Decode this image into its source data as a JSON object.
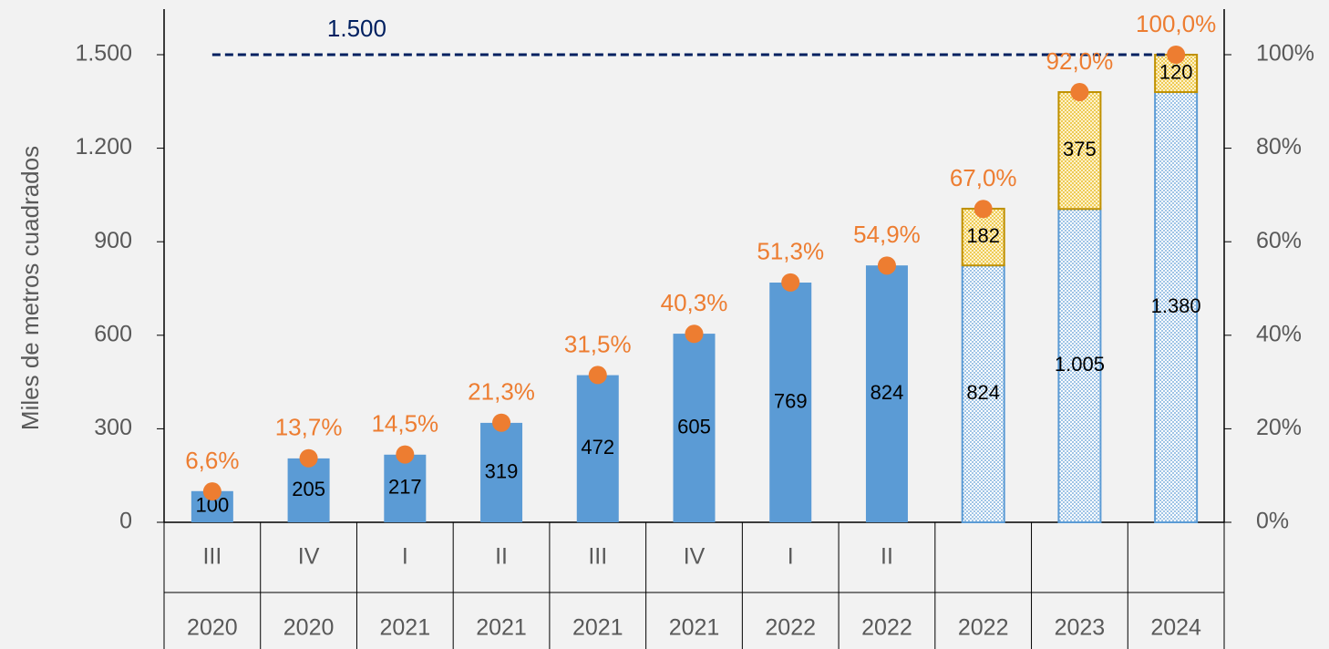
{
  "chart_data": {
    "type": "combo",
    "y_label": "Miles de metros cuadrados",
    "categories": [
      "III",
      "IV",
      "I",
      "II",
      "III",
      "IV",
      "I",
      "II",
      null,
      null,
      null
    ],
    "years": [
      "2020",
      "2020",
      "2021",
      "2021",
      "2021",
      "2021",
      "2022",
      "2022",
      "2022",
      "2023",
      "2024"
    ],
    "series": [
      {
        "kind": "bar",
        "color": "#5b9bd5",
        "styles": [
          "solid",
          "solid",
          "solid",
          "solid",
          "solid",
          "solid",
          "solid",
          "solid",
          "dotted",
          "dotted",
          "dotted"
        ],
        "values": [
          100,
          205,
          217,
          319,
          472,
          605,
          769,
          824,
          824,
          1005,
          1380
        ],
        "value_labels": [
          "100",
          "205",
          "217",
          "319",
          "472",
          "605",
          "769",
          "824",
          "824",
          "1.005",
          "1.380"
        ]
      },
      {
        "kind": "bar",
        "stacked": true,
        "color": "#ffd966",
        "edge": "#bf9000",
        "values": [
          null,
          null,
          null,
          null,
          null,
          null,
          null,
          null,
          182,
          375,
          120
        ]
      },
      {
        "kind": "point",
        "axis": "y2",
        "color": "#ed7d31",
        "values": [
          6.6,
          13.7,
          14.5,
          21.3,
          31.5,
          40.3,
          51.3,
          54.9,
          67.0,
          92.0,
          100.0
        ],
        "value_labels": [
          "6,6%",
          "13,7%",
          "14,5%",
          "21,3%",
          "31,5%",
          "40,3%",
          "51,3%",
          "54,9%",
          "67,0%",
          "92,0%",
          "100,0%"
        ]
      }
    ],
    "reference_line": {
      "value": 1500,
      "label": "1.500",
      "color": "#002060"
    },
    "ylim": [
      0,
      1500
    ],
    "yticks": [
      0,
      300,
      600,
      900,
      {
        "value": 1200,
        "label": "1.200"
      },
      {
        "value": 1500,
        "label": "1.500"
      }
    ],
    "y2lim": [
      0,
      100
    ],
    "y2ticks": [
      {
        "value": 0,
        "label": "0%"
      },
      {
        "value": 20,
        "label": "20%"
      },
      {
        "value": 40,
        "label": "40%"
      },
      {
        "value": 60,
        "label": "60%"
      },
      {
        "value": 80,
        "label": "80%"
      },
      {
        "value": 100,
        "label": "100%"
      }
    ]
  }
}
